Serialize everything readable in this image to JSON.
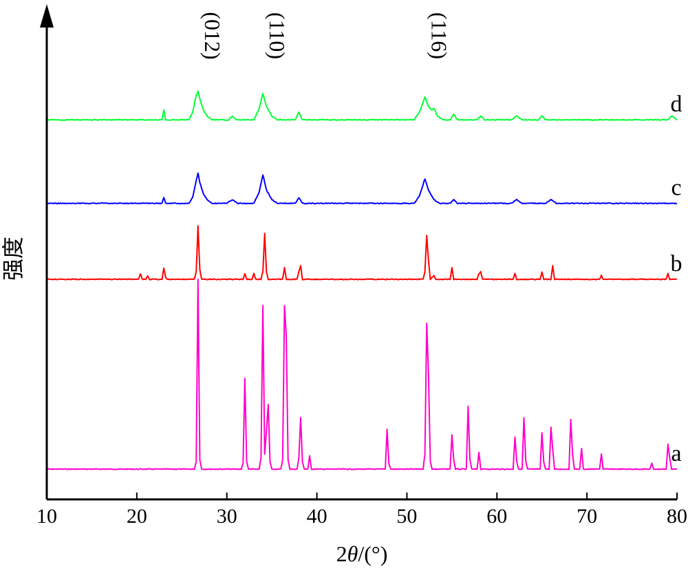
{
  "chart_data": {
    "type": "line",
    "title": "",
    "xlabel": "2θ/(°)",
    "xlabel_parts": {
      "prefix": "2",
      "symbol": "θ",
      "suffix": "/(°)"
    },
    "ylabel": "强度",
    "xlim": [
      10,
      80
    ],
    "xticks": [
      "10",
      "20",
      "30",
      "40",
      "50",
      "60",
      "70",
      "80"
    ],
    "grid": false,
    "legend": "curve labels at right end",
    "peak_annotations": [
      {
        "label": "(012)",
        "x": 26.8
      },
      {
        "label": "(110)",
        "x": 34.0
      },
      {
        "label": "(116)",
        "x": 52.0
      }
    ],
    "series": [
      {
        "name": "a",
        "color": "#ff00cc",
        "baseline": 0,
        "points": [
          [
            10,
            0
          ],
          [
            26.4,
            0
          ],
          [
            26.6,
            4
          ],
          [
            26.8,
            100
          ],
          [
            27.0,
            5
          ],
          [
            27.2,
            0
          ],
          [
            31.6,
            0
          ],
          [
            31.8,
            3
          ],
          [
            32.0,
            48
          ],
          [
            32.2,
            4
          ],
          [
            32.4,
            0
          ],
          [
            33.6,
            0
          ],
          [
            33.8,
            6
          ],
          [
            34.0,
            86
          ],
          [
            34.2,
            8
          ],
          [
            34.4,
            20
          ],
          [
            34.6,
            34
          ],
          [
            34.8,
            4
          ],
          [
            35.0,
            0
          ],
          [
            36.0,
            0
          ],
          [
            36.2,
            5
          ],
          [
            36.4,
            86
          ],
          [
            36.6,
            70
          ],
          [
            36.8,
            5
          ],
          [
            37.0,
            0
          ],
          [
            37.8,
            0
          ],
          [
            38.0,
            6
          ],
          [
            38.2,
            27
          ],
          [
            38.4,
            4
          ],
          [
            38.6,
            0
          ],
          [
            39.0,
            0
          ],
          [
            39.2,
            7
          ],
          [
            39.4,
            0
          ],
          [
            47.6,
            0
          ],
          [
            47.8,
            21
          ],
          [
            48.0,
            3
          ],
          [
            48.2,
            0
          ],
          [
            51.8,
            0
          ],
          [
            52.0,
            8
          ],
          [
            52.2,
            77
          ],
          [
            52.4,
            50
          ],
          [
            52.6,
            4
          ],
          [
            52.8,
            0
          ],
          [
            54.8,
            0
          ],
          [
            55.0,
            18
          ],
          [
            55.2,
            5
          ],
          [
            55.4,
            0
          ],
          [
            56.6,
            0
          ],
          [
            56.8,
            33
          ],
          [
            57.0,
            5
          ],
          [
            57.2,
            0
          ],
          [
            57.8,
            0
          ],
          [
            58.0,
            9
          ],
          [
            58.2,
            0
          ],
          [
            61.8,
            0
          ],
          [
            62.0,
            17
          ],
          [
            62.2,
            4
          ],
          [
            62.4,
            0
          ],
          [
            62.8,
            0
          ],
          [
            63.0,
            27
          ],
          [
            63.2,
            4
          ],
          [
            63.4,
            0
          ],
          [
            64.8,
            0
          ],
          [
            65.0,
            19
          ],
          [
            65.2,
            4
          ],
          [
            65.4,
            0
          ],
          [
            65.8,
            0
          ],
          [
            66.0,
            22
          ],
          [
            66.2,
            10
          ],
          [
            66.4,
            0
          ],
          [
            68.0,
            0
          ],
          [
            68.2,
            26
          ],
          [
            68.4,
            8
          ],
          [
            68.6,
            0
          ],
          [
            69.2,
            0
          ],
          [
            69.4,
            11
          ],
          [
            69.6,
            0
          ],
          [
            71.4,
            0
          ],
          [
            71.6,
            8
          ],
          [
            71.8,
            0
          ],
          [
            77.0,
            0
          ],
          [
            77.2,
            3
          ],
          [
            77.4,
            0
          ],
          [
            78.8,
            0
          ],
          [
            79.0,
            13
          ],
          [
            79.2,
            6
          ],
          [
            79.4,
            0
          ],
          [
            80,
            0
          ]
        ]
      },
      {
        "name": "b",
        "color": "#ff0000",
        "baseline": 100,
        "points": [
          [
            10,
            100
          ],
          [
            20.2,
            100
          ],
          [
            20.4,
            103
          ],
          [
            20.6,
            100
          ],
          [
            21.0,
            100
          ],
          [
            21.2,
            102
          ],
          [
            21.4,
            100
          ],
          [
            22.8,
            100
          ],
          [
            23.0,
            106
          ],
          [
            23.2,
            101
          ],
          [
            23.4,
            100
          ],
          [
            26.4,
            100
          ],
          [
            26.6,
            104
          ],
          [
            26.8,
            128
          ],
          [
            27.0,
            105
          ],
          [
            27.2,
            100
          ],
          [
            31.8,
            100
          ],
          [
            32.0,
            103
          ],
          [
            32.2,
            100
          ],
          [
            32.8,
            100
          ],
          [
            33.0,
            103
          ],
          [
            33.2,
            100
          ],
          [
            33.8,
            100
          ],
          [
            34.0,
            104
          ],
          [
            34.2,
            124
          ],
          [
            34.4,
            104
          ],
          [
            34.6,
            100
          ],
          [
            36.2,
            100
          ],
          [
            36.4,
            106
          ],
          [
            36.6,
            100
          ],
          [
            37.8,
            100
          ],
          [
            38.0,
            104
          ],
          [
            38.2,
            107
          ],
          [
            38.4,
            100
          ],
          [
            51.8,
            100
          ],
          [
            52.0,
            104
          ],
          [
            52.2,
            123
          ],
          [
            52.4,
            110
          ],
          [
            52.6,
            100
          ],
          [
            53.0,
            102
          ],
          [
            53.2,
            100
          ],
          [
            54.8,
            100
          ],
          [
            55.0,
            106
          ],
          [
            55.2,
            100
          ],
          [
            57.8,
            100
          ],
          [
            58.0,
            103
          ],
          [
            58.2,
            104
          ],
          [
            58.4,
            100
          ],
          [
            61.8,
            100
          ],
          [
            62.0,
            103
          ],
          [
            62.2,
            100
          ],
          [
            64.8,
            100
          ],
          [
            65.0,
            104
          ],
          [
            65.2,
            100
          ],
          [
            66.0,
            100
          ],
          [
            66.2,
            107
          ],
          [
            66.4,
            100
          ],
          [
            71.4,
            100
          ],
          [
            71.6,
            102
          ],
          [
            71.8,
            100
          ],
          [
            78.8,
            100
          ],
          [
            79.0,
            103
          ],
          [
            79.2,
            100
          ],
          [
            80,
            100
          ]
        ]
      },
      {
        "name": "c",
        "color": "#0000ff",
        "baseline": 140,
        "points": [
          [
            10,
            140
          ],
          [
            22.8,
            140
          ],
          [
            23.0,
            143
          ],
          [
            23.2,
            140
          ],
          [
            25.8,
            140
          ],
          [
            26.2,
            143
          ],
          [
            26.6,
            152
          ],
          [
            26.8,
            156
          ],
          [
            27.0,
            151
          ],
          [
            27.4,
            145
          ],
          [
            27.8,
            142
          ],
          [
            28.4,
            140
          ],
          [
            30.0,
            140
          ],
          [
            30.6,
            142
          ],
          [
            31.2,
            140
          ],
          [
            33.0,
            140
          ],
          [
            33.6,
            146
          ],
          [
            34.0,
            155
          ],
          [
            34.4,
            147
          ],
          [
            35.0,
            142
          ],
          [
            35.6,
            140
          ],
          [
            37.6,
            140
          ],
          [
            38.0,
            143
          ],
          [
            38.4,
            140
          ],
          [
            50.8,
            140
          ],
          [
            51.4,
            144
          ],
          [
            52.0,
            153
          ],
          [
            52.4,
            147
          ],
          [
            53.0,
            142
          ],
          [
            53.6,
            140
          ],
          [
            54.8,
            140
          ],
          [
            55.2,
            142
          ],
          [
            55.6,
            140
          ],
          [
            61.6,
            140
          ],
          [
            62.2,
            142
          ],
          [
            62.8,
            140
          ],
          [
            65.4,
            140
          ],
          [
            66.0,
            142
          ],
          [
            66.6,
            140
          ],
          [
            80,
            140
          ]
        ]
      },
      {
        "name": "d",
        "color": "#00ff33",
        "baseline": 184,
        "points": [
          [
            10,
            184
          ],
          [
            22.8,
            184
          ],
          [
            23.0,
            189
          ],
          [
            23.2,
            184
          ],
          [
            25.8,
            184
          ],
          [
            26.2,
            188
          ],
          [
            26.6,
            197
          ],
          [
            26.8,
            199
          ],
          [
            27.0,
            195
          ],
          [
            27.4,
            189
          ],
          [
            27.8,
            186
          ],
          [
            28.4,
            184
          ],
          [
            30.2,
            184
          ],
          [
            30.6,
            186
          ],
          [
            31.0,
            184
          ],
          [
            33.0,
            184
          ],
          [
            33.6,
            190
          ],
          [
            34.0,
            198
          ],
          [
            34.4,
            191
          ],
          [
            35.0,
            186
          ],
          [
            35.6,
            184
          ],
          [
            37.6,
            184
          ],
          [
            38.0,
            188
          ],
          [
            38.4,
            184
          ],
          [
            50.8,
            184
          ],
          [
            51.4,
            188
          ],
          [
            52.0,
            196
          ],
          [
            52.4,
            191
          ],
          [
            52.8,
            189
          ],
          [
            53.0,
            190
          ],
          [
            53.4,
            186
          ],
          [
            54.0,
            184
          ],
          [
            54.8,
            184
          ],
          [
            55.2,
            187
          ],
          [
            55.6,
            184
          ],
          [
            57.8,
            184
          ],
          [
            58.2,
            186
          ],
          [
            58.6,
            184
          ],
          [
            61.6,
            184
          ],
          [
            62.2,
            186
          ],
          [
            62.8,
            184
          ],
          [
            64.6,
            184
          ],
          [
            65.0,
            186
          ],
          [
            65.4,
            184
          ],
          [
            79.0,
            184
          ],
          [
            79.4,
            186
          ],
          [
            80,
            184
          ]
        ]
      }
    ]
  }
}
